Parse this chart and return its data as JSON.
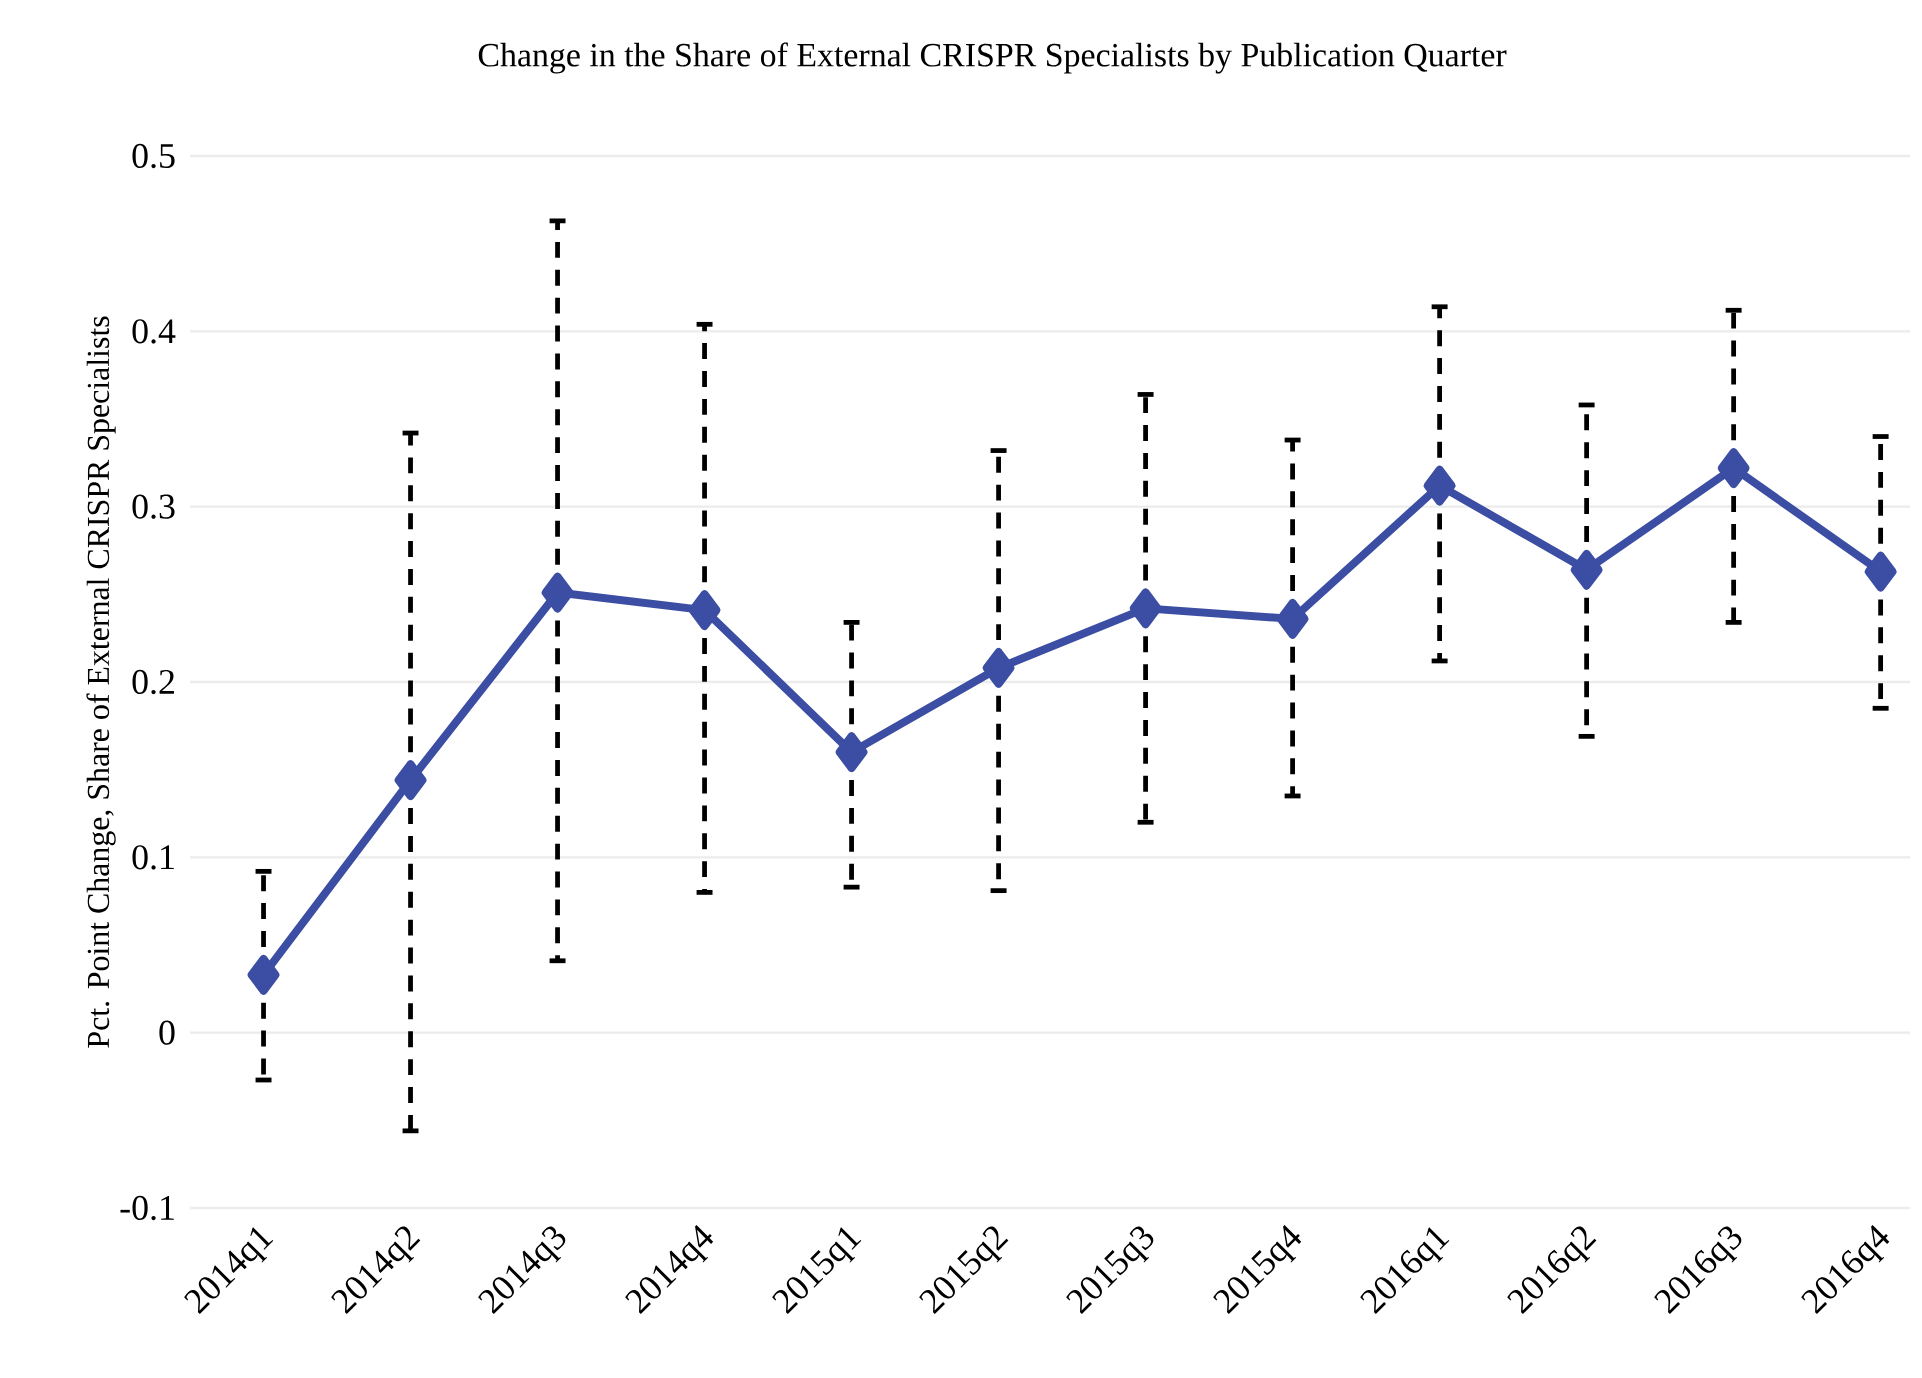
{
  "chart_data": {
    "type": "line",
    "title": "Change in the Share of External CRISPR Specialists by Publication Quarter",
    "ylabel": "Pct. Point Change, Share of External CRISPR Specialists",
    "categories": [
      "2014q1",
      "2014q2",
      "2014q3",
      "2014q4",
      "2015q1",
      "2015q2",
      "2015q3",
      "2015q4",
      "2016q1",
      "2016q2",
      "2016q3",
      "2016q4"
    ],
    "values": [
      0.033,
      0.144,
      0.251,
      0.241,
      0.16,
      0.208,
      0.242,
      0.236,
      0.312,
      0.264,
      0.322,
      0.263
    ],
    "errors": [
      [
        -0.027,
        0.092
      ],
      [
        -0.056,
        0.342
      ],
      [
        0.041,
        0.463
      ],
      [
        0.08,
        0.404
      ],
      [
        0.083,
        0.234
      ],
      [
        0.081,
        0.332
      ],
      [
        0.12,
        0.364
      ],
      [
        0.135,
        0.338
      ],
      [
        0.212,
        0.414
      ],
      [
        0.169,
        0.358
      ],
      [
        0.234,
        0.412
      ],
      [
        0.185,
        0.34
      ]
    ],
    "color": "#3b4ea3",
    "marker": "diamond",
    "line_style": "solid",
    "ylim": [
      -0.1,
      0.5
    ],
    "yticks": [
      -0.1,
      0,
      0.1,
      0.2,
      0.3,
      0.4,
      0.5
    ],
    "grid": "y"
  }
}
